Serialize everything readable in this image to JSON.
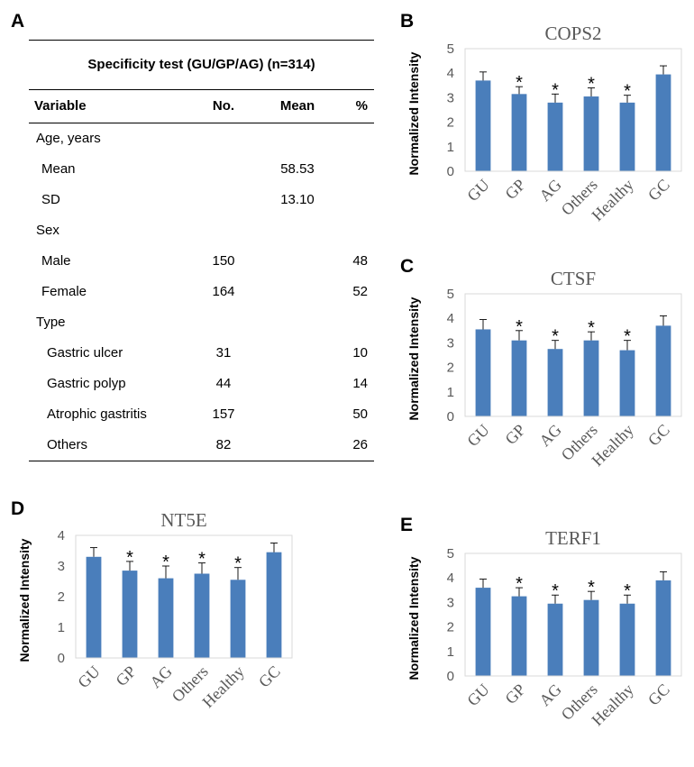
{
  "panels": {
    "a": "A",
    "b": "B",
    "c": "C",
    "d": "D",
    "e": "E"
  },
  "table": {
    "title": "Specificity test (GU/GP/AG) (n=314)",
    "headers": {
      "variable": "Variable",
      "no": "No.",
      "mean": "Mean",
      "pct": "%"
    },
    "rows": [
      {
        "variable": "Age, years",
        "no": "",
        "mean": "",
        "pct": ""
      },
      {
        "variable": "Mean",
        "no": "",
        "mean": "58.53",
        "pct": ""
      },
      {
        "variable": "SD",
        "no": "",
        "mean": "13.10",
        "pct": ""
      },
      {
        "variable": "Sex",
        "no": "",
        "mean": "",
        "pct": ""
      },
      {
        "variable": "Male",
        "no": "150",
        "mean": "",
        "pct": "48"
      },
      {
        "variable": "Female",
        "no": "164",
        "mean": "",
        "pct": "52"
      },
      {
        "variable": "Type",
        "no": "",
        "mean": "",
        "pct": ""
      },
      {
        "variable": "Gastric ulcer",
        "no": "31",
        "mean": "",
        "pct": "10"
      },
      {
        "variable": "Gastric polyp",
        "no": "44",
        "mean": "",
        "pct": "14"
      },
      {
        "variable": "Atrophic gastritis",
        "no": "157",
        "mean": "",
        "pct": "50"
      },
      {
        "variable": "Others",
        "no": "82",
        "mean": "",
        "pct": "26"
      }
    ]
  },
  "chart_data": [
    {
      "panel": "B",
      "type": "bar",
      "title": "COPS2",
      "xlabel": "",
      "ylabel": "Normalized Intensity",
      "categories": [
        "GU",
        "GP",
        "AG",
        "Others",
        "Healthy",
        "GC"
      ],
      "values": [
        3.7,
        3.15,
        2.8,
        3.05,
        2.8,
        3.95
      ],
      "errors": [
        0.35,
        0.3,
        0.35,
        0.35,
        0.3,
        0.35
      ],
      "significance": [
        "",
        "*",
        "*",
        "*",
        "*",
        ""
      ],
      "ylim": [
        0,
        5
      ],
      "yticks": [
        0,
        1,
        2,
        3,
        4,
        5
      ],
      "color": "#4a7ebb",
      "grid": false
    },
    {
      "panel": "C",
      "type": "bar",
      "title": "CTSF",
      "xlabel": "",
      "ylabel": "Normalized Intensity",
      "categories": [
        "GU",
        "GP",
        "AG",
        "Others",
        "Healthy",
        "GC"
      ],
      "values": [
        3.55,
        3.1,
        2.75,
        3.1,
        2.7,
        3.7
      ],
      "errors": [
        0.4,
        0.4,
        0.35,
        0.35,
        0.4,
        0.4
      ],
      "significance": [
        "",
        "*",
        "*",
        "*",
        "*",
        ""
      ],
      "ylim": [
        0,
        5
      ],
      "yticks": [
        0,
        1,
        2,
        3,
        4,
        5
      ],
      "color": "#4a7ebb",
      "grid": false
    },
    {
      "panel": "D",
      "type": "bar",
      "title": "NT5E",
      "xlabel": "",
      "ylabel": "Normalized Intensity",
      "categories": [
        "GU",
        "GP",
        "AG",
        "Others",
        "Healthy",
        "GC"
      ],
      "values": [
        3.3,
        2.85,
        2.6,
        2.75,
        2.55,
        3.45
      ],
      "errors": [
        0.3,
        0.3,
        0.4,
        0.35,
        0.4,
        0.3
      ],
      "significance": [
        "",
        "*",
        "*",
        "*",
        "*",
        ""
      ],
      "ylim": [
        0,
        4
      ],
      "yticks": [
        0,
        1,
        2,
        3,
        4
      ],
      "color": "#4a7ebb",
      "grid": false
    },
    {
      "panel": "E",
      "type": "bar",
      "title": "TERF1",
      "xlabel": "",
      "ylabel": "Normalized Intensity",
      "categories": [
        "GU",
        "GP",
        "AG",
        "Others",
        "Healthy",
        "GC"
      ],
      "values": [
        3.6,
        3.25,
        2.95,
        3.1,
        2.95,
        3.9
      ],
      "errors": [
        0.35,
        0.35,
        0.35,
        0.35,
        0.35,
        0.35
      ],
      "significance": [
        "",
        "*",
        "*",
        "*",
        "*",
        ""
      ],
      "ylim": [
        0,
        5
      ],
      "yticks": [
        0,
        1,
        2,
        3,
        4,
        5
      ],
      "color": "#4a7ebb",
      "grid": false
    }
  ]
}
